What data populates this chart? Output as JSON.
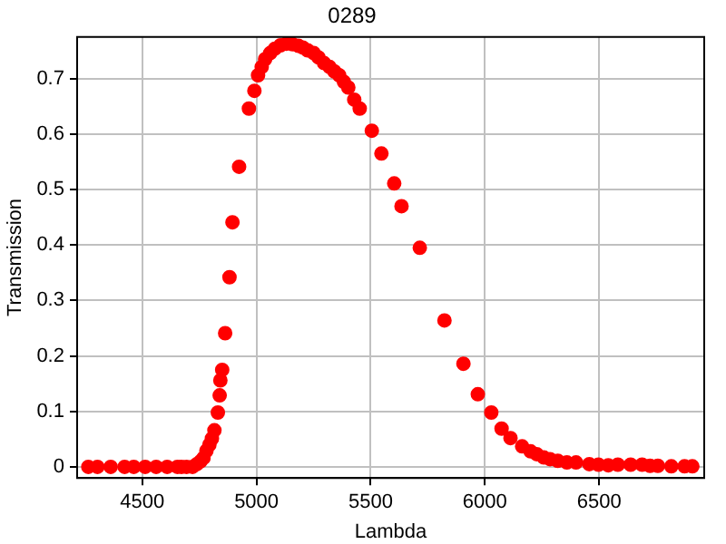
{
  "chart_data": {
    "type": "scatter",
    "title": "0289",
    "xlabel": "Lambda",
    "ylabel": "Transmission",
    "xlim": [
      4215,
      6960
    ],
    "xticks": [
      4500,
      5000,
      5500,
      6000,
      6500
    ],
    "ylim": [
      -0.02,
      0.775
    ],
    "yticks": [
      0,
      0.1,
      0.2,
      0.3,
      0.4,
      0.5,
      0.6,
      0.7
    ],
    "grid": true,
    "marker": "circle",
    "series": [
      {
        "color": "#ff0000",
        "x": [
          4264,
          4304,
          4362,
          4423,
          4463,
          4513,
          4561,
          4609,
          4654,
          4672,
          4694,
          4720,
          4739,
          4755,
          4768,
          4781,
          4794,
          4805,
          4816,
          4831,
          4839,
          4842,
          4850,
          4863,
          4882,
          4895,
          4924,
          4967,
          4991,
          5007,
          5023,
          5038,
          5060,
          5081,
          5105,
          5131,
          5158,
          5184,
          5203,
          5224,
          5251,
          5272,
          5296,
          5320,
          5341,
          5362,
          5383,
          5402,
          5428,
          5452,
          5505,
          5547,
          5603,
          5635,
          5715,
          5823,
          5906,
          5969,
          6028,
          6073,
          6112,
          6163,
          6200,
          6227,
          6258,
          6285,
          6319,
          6359,
          6399,
          6457,
          6497,
          6540,
          6582,
          6638,
          6688,
          6723,
          6757,
          6816,
          6874,
          6908
        ],
        "values": [
          0,
          0,
          0,
          0,
          0,
          0,
          0,
          0,
          0,
          0,
          0,
          0,
          0.005,
          0.01,
          0.016,
          0.029,
          0.04,
          0.051,
          0.066,
          0.098,
          0.129,
          0.156,
          0.175,
          0.241,
          0.342,
          0.441,
          0.541,
          0.646,
          0.678,
          0.706,
          0.721,
          0.735,
          0.746,
          0.754,
          0.76,
          0.763,
          0.762,
          0.759,
          0.756,
          0.751,
          0.746,
          0.738,
          0.728,
          0.721,
          0.713,
          0.706,
          0.694,
          0.684,
          0.662,
          0.646,
          0.606,
          0.565,
          0.511,
          0.47,
          0.395,
          0.264,
          0.186,
          0.131,
          0.098,
          0.069,
          0.052,
          0.037,
          0.028,
          0.023,
          0.017,
          0.014,
          0.011,
          0.008,
          0.008,
          0.005,
          0.004,
          0.003,
          0.004,
          0.004,
          0.004,
          0.002,
          0.002,
          0.001,
          0.001,
          0.001
        ]
      }
    ]
  }
}
